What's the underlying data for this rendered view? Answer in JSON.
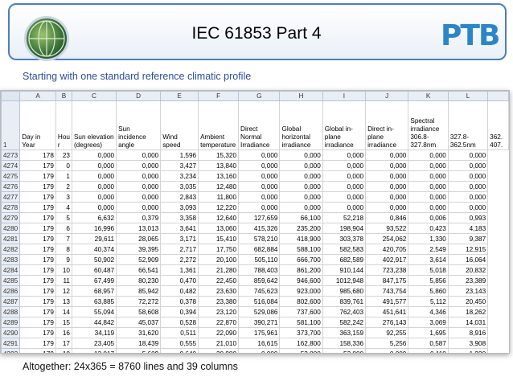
{
  "header": {
    "title": "IEC 61853 Part 4",
    "logo_text": "PTB"
  },
  "subtitle": "Starting with one standard reference climatic profile",
  "footer": "Altogether: 24x365 = 8760 lines and 39 columns",
  "sheet": {
    "column_letters": [
      "A",
      "B",
      "C",
      "D",
      "E",
      "F",
      "G",
      "H",
      "I",
      "J",
      "K",
      "L",
      ""
    ],
    "header_row_number": "1",
    "headers": [
      "Day in Year",
      "Hou r",
      "Sun elevation (degrees)",
      "Sun incidence angle",
      "Wind speed",
      "Ambient temperature",
      "Direct Normal Irradiance",
      "Global horizontal irradiance",
      "Global in-plane irradiance",
      "Direct in-plane irradiance",
      "Spectral irradiance 306.8-327.8nm",
      "327.8-362.5nm",
      "362. 407."
    ],
    "rows": [
      [
        "4273",
        "178",
        "23",
        "0,000",
        "0,000",
        "1,596",
        "15,320",
        "0,000",
        "0,000",
        "0,000",
        "0,000",
        "0,000",
        "0,000"
      ],
      [
        "4274",
        "179",
        "0",
        "0,000",
        "0,000",
        "3,427",
        "13,840",
        "0,000",
        "0,000",
        "0,000",
        "0,000",
        "0,000",
        "0,000"
      ],
      [
        "4275",
        "179",
        "1",
        "0,000",
        "0,000",
        "3,234",
        "13,160",
        "0,000",
        "0,000",
        "0,000",
        "0,000",
        "0,000",
        "0,000"
      ],
      [
        "4276",
        "179",
        "2",
        "0,000",
        "0,000",
        "3,035",
        "12,480",
        "0,000",
        "0,000",
        "0,000",
        "0,000",
        "0,000",
        "0,000"
      ],
      [
        "4277",
        "179",
        "3",
        "0,000",
        "0,000",
        "2,843",
        "11,800",
        "0,000",
        "0,000",
        "0,000",
        "0,000",
        "0,000",
        "0,000"
      ],
      [
        "4278",
        "179",
        "4",
        "0,000",
        "0,000",
        "3,093",
        "12,220",
        "0,000",
        "0,000",
        "0,000",
        "0,000",
        "0,000",
        "0,000"
      ],
      [
        "4279",
        "179",
        "5",
        "6,632",
        "0,379",
        "3,358",
        "12,640",
        "127,659",
        "66,100",
        "52,218",
        "0,846",
        "0,006",
        "0,993"
      ],
      [
        "4280",
        "179",
        "6",
        "16,996",
        "13,013",
        "3,641",
        "13,060",
        "415,326",
        "235,200",
        "198,904",
        "93,522",
        "0,423",
        "4,183"
      ],
      [
        "4281",
        "179",
        "7",
        "29,611",
        "28,065",
        "3,171",
        "15,410",
        "578,210",
        "418,900",
        "303,378",
        "254,062",
        "1,330",
        "9,387"
      ],
      [
        "4282",
        "179",
        "8",
        "40,374",
        "39,395",
        "2,717",
        "17,750",
        "682,884",
        "588,100",
        "582,583",
        "420,705",
        "2,549",
        "12,915"
      ],
      [
        "4283",
        "179",
        "9",
        "50,902",
        "52,909",
        "2,272",
        "20,100",
        "505,110",
        "666,700",
        "682,589",
        "402,917",
        "3,614",
        "16,064"
      ],
      [
        "4284",
        "179",
        "10",
        "60,487",
        "66,541",
        "1,361",
        "21,280",
        "788,403",
        "861,200",
        "910,144",
        "723,238",
        "5,018",
        "20,832"
      ],
      [
        "4285",
        "179",
        "11",
        "67,499",
        "80,230",
        "0,470",
        "22,450",
        "859,642",
        "946,600",
        "1012,948",
        "847,175",
        "5,856",
        "23,389"
      ],
      [
        "4286",
        "179",
        "12",
        "68,957",
        "85,942",
        "0,482",
        "23,630",
        "745,623",
        "923,000",
        "985,680",
        "743,754",
        "5,860",
        "23,143"
      ],
      [
        "4287",
        "179",
        "13",
        "63,885",
        "72,272",
        "0,378",
        "23,380",
        "516,084",
        "802,600",
        "839,761",
        "491,577",
        "5,112",
        "20,450"
      ],
      [
        "4288",
        "179",
        "14",
        "55,094",
        "58,608",
        "0,394",
        "23,120",
        "529,086",
        "737,600",
        "762,403",
        "451,641",
        "4,346",
        "18,262"
      ],
      [
        "4289",
        "179",
        "15",
        "44,842",
        "45,037",
        "0,528",
        "22,870",
        "390,271",
        "581,100",
        "582,242",
        "276,143",
        "3,069",
        "14,031"
      ],
      [
        "4290",
        "179",
        "16",
        "34,119",
        "31,620",
        "0,511",
        "22,090",
        "175,961",
        "373,700",
        "363,159",
        "92,255",
        "1,695",
        "8,916"
      ],
      [
        "4291",
        "179",
        "17",
        "23,405",
        "18,439",
        "0,555",
        "21,010",
        "16,615",
        "162,800",
        "158,336",
        "5,256",
        "0,587",
        "3,908"
      ],
      [
        "4292",
        "179",
        "18",
        "13,017",
        "5,609",
        "0,640",
        "20,980",
        "0,000",
        "53,800",
        "53,800",
        "0,000",
        "0,110",
        "1,220"
      ],
      [
        "4293",
        "179",
        "19",
        "3,248",
        "0,000",
        "0,931",
        "19,640",
        "0,000",
        "27,500",
        "26,267",
        "0,000",
        "0,000",
        "0,375"
      ],
      [
        "4294",
        "179",
        "20",
        "0,000",
        "0,000",
        "1,361",
        "18,310",
        "0,000",
        "0,000",
        "0,000",
        "0,000",
        "0,000",
        "0,000"
      ],
      [
        "4295",
        "179",
        "21",
        "0,000",
        "0,000",
        "1,836",
        "16,970",
        "0,000",
        "0,000",
        "0,000",
        "0,000",
        "0,000",
        "0,000"
      ]
    ]
  }
}
